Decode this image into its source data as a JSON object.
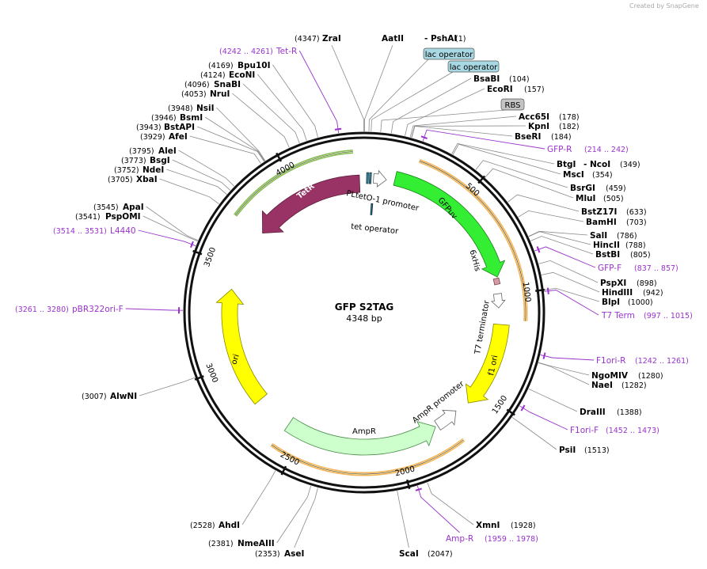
{
  "header": {
    "credit": "Created by SnapGene"
  },
  "plasmid": {
    "name": "GFP S2TAG",
    "size": "4348 bp"
  },
  "ring_ticks": [
    "500",
    "1000",
    "1500",
    "2000",
    "2500",
    "3000",
    "3500",
    "4000"
  ],
  "features": [
    {
      "label": "TetR"
    },
    {
      "label": "PLtetO-1 promoter"
    },
    {
      "label": "tet operator"
    },
    {
      "label": "GFPuv"
    },
    {
      "label": "6xHis"
    },
    {
      "label": "T7 terminator"
    },
    {
      "label": "f1 ori"
    },
    {
      "label": "AmpR promoter"
    },
    {
      "label": "AmpR"
    },
    {
      "label": "ori"
    },
    {
      "label": "lac operator"
    },
    {
      "label": "lac operator"
    },
    {
      "label": "RBS"
    }
  ],
  "sites": [
    {
      "name": "ZraI",
      "position": "(4347)"
    },
    {
      "name": "AatII",
      "also": "- PshAI",
      "position": "(1)"
    },
    {
      "name": "BsaBI",
      "position": "(104)"
    },
    {
      "name": "EcoRI",
      "position": "(157)"
    },
    {
      "name": "Acc65I",
      "position": "(178)"
    },
    {
      "name": "KpnI",
      "position": "(182)"
    },
    {
      "name": "BseRI",
      "position": "(184)"
    },
    {
      "name": "BtgI",
      "also": "- NcoI",
      "position": "(349)"
    },
    {
      "name": "MscI",
      "position": "(354)"
    },
    {
      "name": "BsrGI",
      "position": "(459)"
    },
    {
      "name": "MluI",
      "position": "(505)"
    },
    {
      "name": "BstZ17I",
      "position": "(633)"
    },
    {
      "name": "BamHI",
      "position": "(703)"
    },
    {
      "name": "SalI",
      "position": "(786)"
    },
    {
      "name": "HincII",
      "position": "(788)"
    },
    {
      "name": "BstBI",
      "position": "(805)"
    },
    {
      "name": "PspXI",
      "position": "(898)"
    },
    {
      "name": "HindIII",
      "position": "(942)"
    },
    {
      "name": "BlpI",
      "position": "(1000)"
    },
    {
      "name": "NgoMIV",
      "position": "(1280)"
    },
    {
      "name": "NaeI",
      "position": "(1282)"
    },
    {
      "name": "DraIII",
      "position": "(1388)"
    },
    {
      "name": "PsiI",
      "position": "(1513)"
    },
    {
      "name": "XmnI",
      "position": "(1928)"
    },
    {
      "name": "ScaI",
      "position": "(2047)"
    },
    {
      "name": "AseI",
      "position": "(2353)"
    },
    {
      "name": "NmeAIII",
      "position": "(2381)"
    },
    {
      "name": "AhdI",
      "position": "(2528)"
    },
    {
      "name": "AlwNI",
      "position": "(3007)"
    },
    {
      "name": "Bpu10I",
      "position": "(4169)"
    },
    {
      "name": "EcoNI",
      "position": "(4124)"
    },
    {
      "name": "SnaBI",
      "position": "(4096)"
    },
    {
      "name": "NruI",
      "position": "(4053)"
    },
    {
      "name": "NsiI",
      "position": "(3948)"
    },
    {
      "name": "BsmI",
      "position": "(3946)"
    },
    {
      "name": "BstAPI",
      "position": "(3943)"
    },
    {
      "name": "AfeI",
      "position": "(3929)"
    },
    {
      "name": "AleI",
      "position": "(3795)"
    },
    {
      "name": "BsgI",
      "position": "(3773)"
    },
    {
      "name": "NdeI",
      "position": "(3752)"
    },
    {
      "name": "XbaI",
      "position": "(3705)"
    },
    {
      "name": "ApaI",
      "position": "(3545)"
    },
    {
      "name": "PspOMI",
      "position": "(3541)"
    }
  ],
  "primers": [
    {
      "name": "Tet-R",
      "range": "(4242 .. 4261)"
    },
    {
      "name": "GFP-R",
      "range": "(214 .. 242)"
    },
    {
      "name": "L4440",
      "range": "(3514 .. 3531)"
    },
    {
      "name": "GFP-F",
      "range": "(837 .. 857)"
    },
    {
      "name": "T7 Term",
      "range": "(997 .. 1015)"
    },
    {
      "name": "pBR322ori-F",
      "range": "(3261 .. 3280)"
    },
    {
      "name": "F1ori-R",
      "range": "(1242 .. 1261)"
    },
    {
      "name": "F1ori-F",
      "range": "(1452 .. 1473)"
    },
    {
      "name": "Amp-R",
      "range": "(1959 .. 1978)"
    }
  ]
}
